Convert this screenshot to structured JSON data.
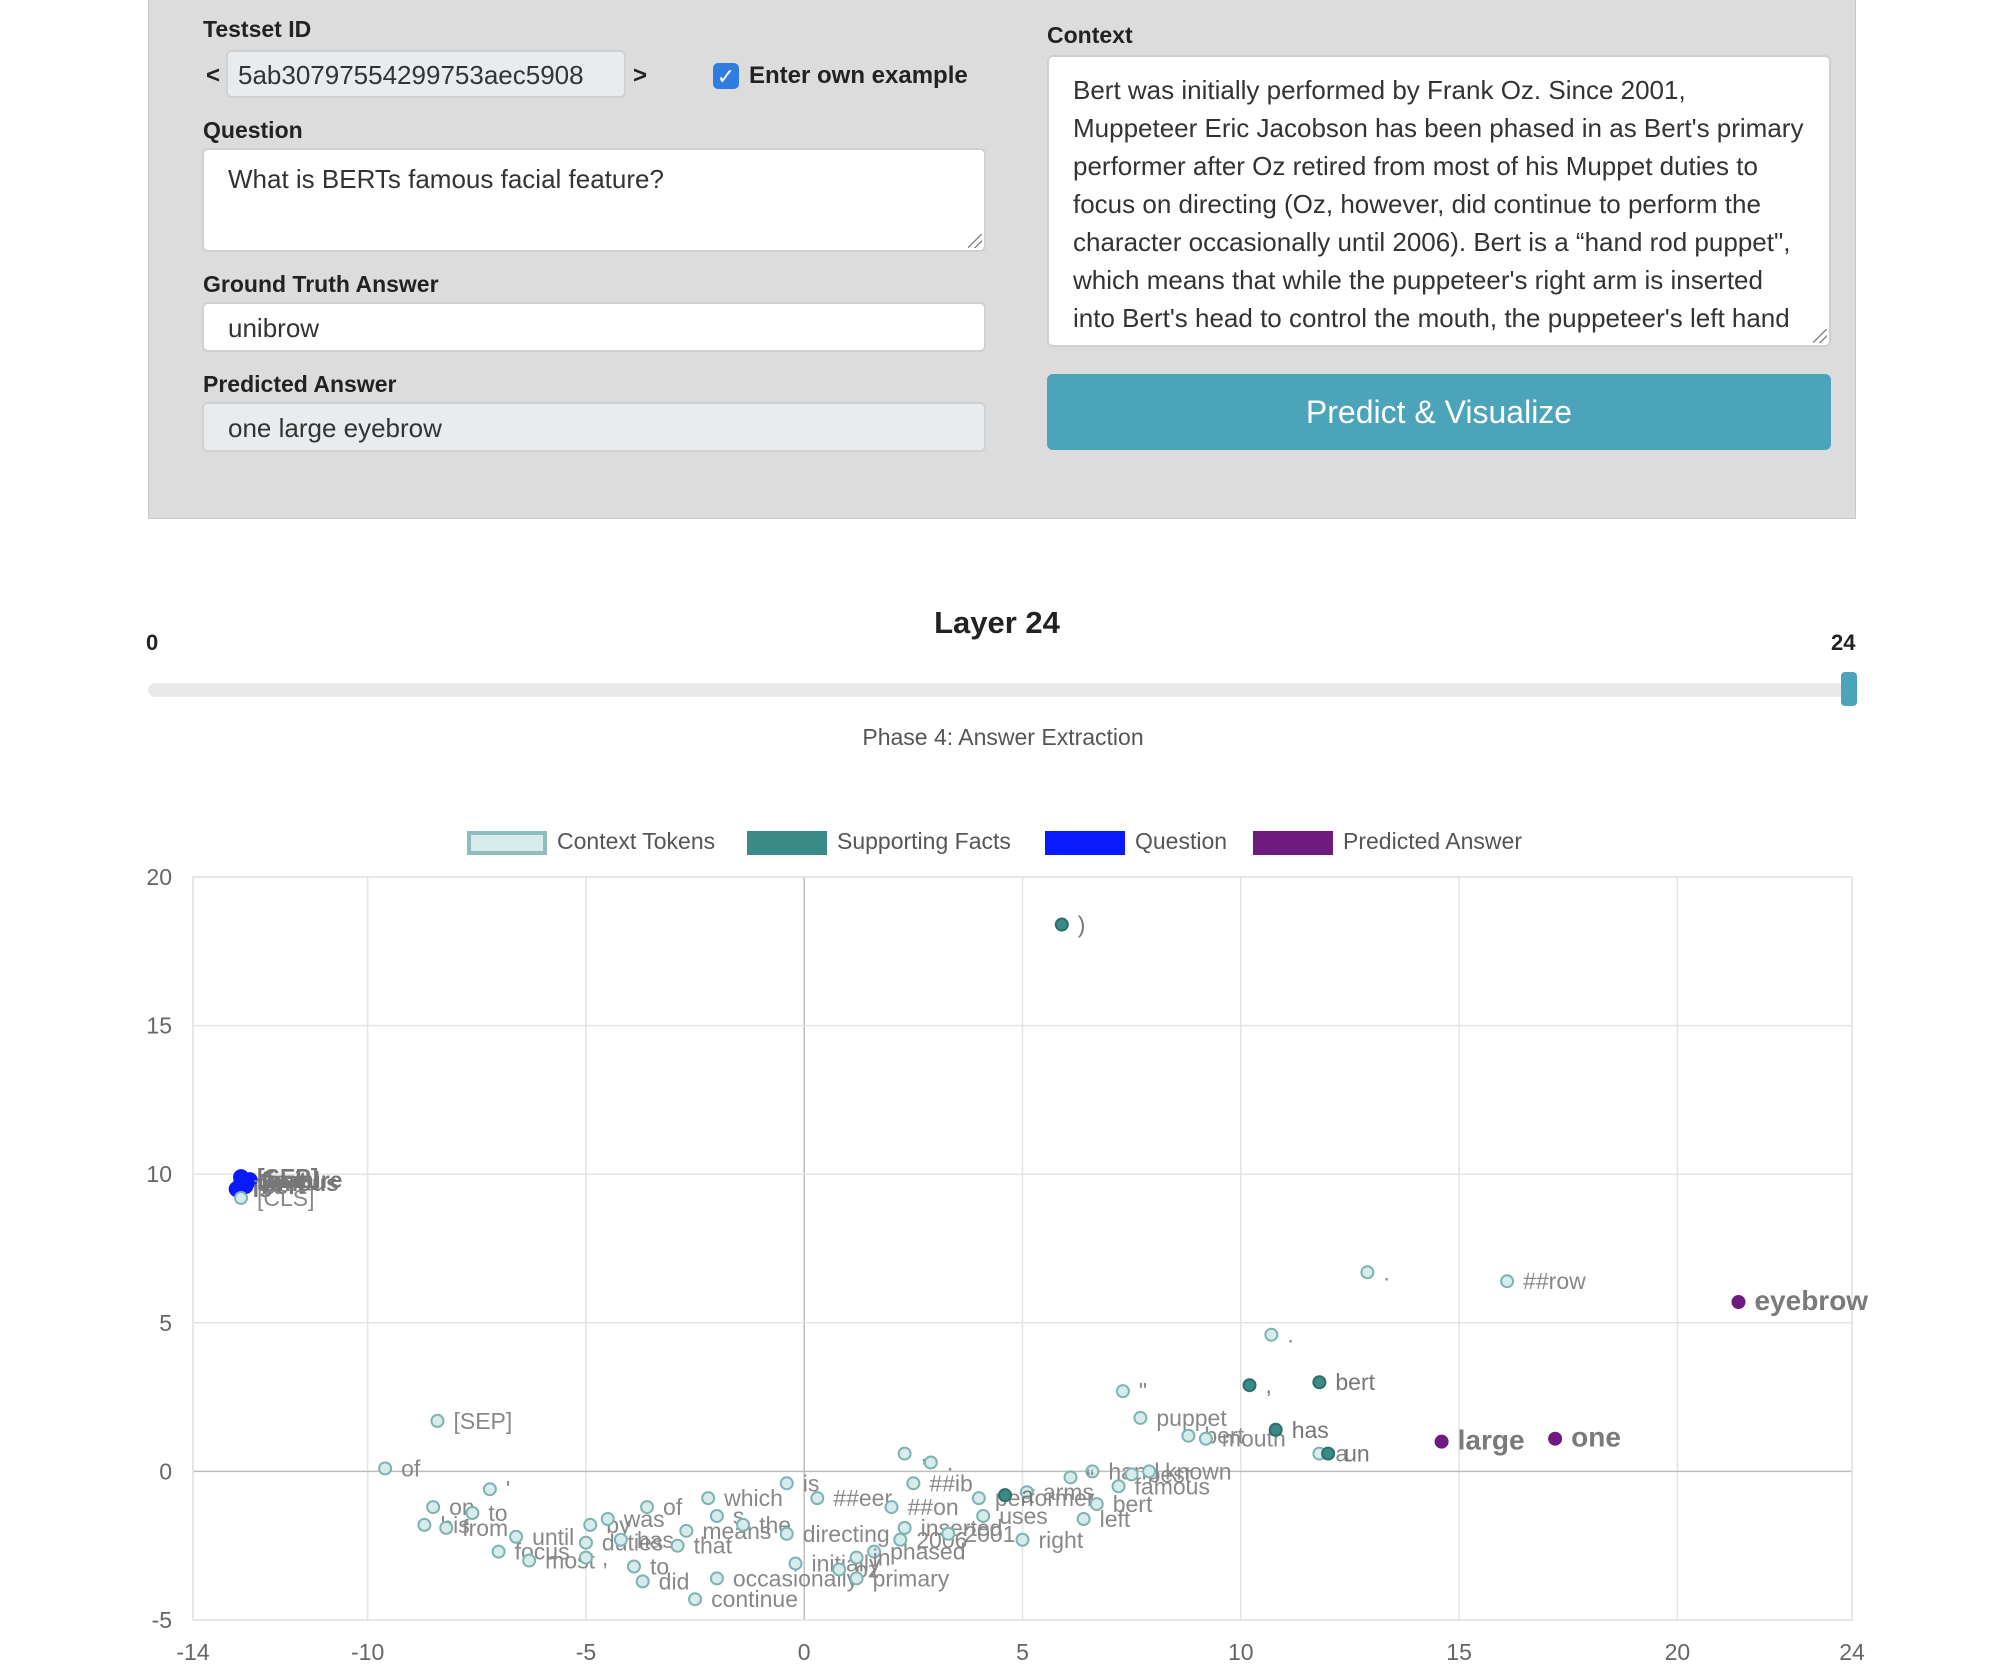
{
  "form": {
    "testset_label": "Testset ID",
    "prev": "<",
    "next": ">",
    "testset_id": "5ab30797554299753aec5908",
    "own_example_label": "Enter own example",
    "own_example_checked": true,
    "question_label": "Question",
    "question": "What is BERTs famous facial feature?",
    "ground_truth_label": "Ground Truth Answer",
    "ground_truth": "unibrow",
    "predicted_label": "Predicted Answer",
    "predicted": "one large eyebrow",
    "context_label": "Context",
    "context": "Bert was initially performed by Frank Oz. Since 2001, Muppeteer Eric Jacobson has been phased in as Bert's primary performer after Oz retired from most of his Muppet duties to focus on directing (Oz, however, did continue to perform the character occasionally until 2006). Bert is a “hand rod puppet\", which means that while the puppeteer's right arm is inserted into Bert's head to control the mouth, the puppeteer's left hand uses a rod to control the arms of the",
    "button": "Predict & Visualize"
  },
  "layer": {
    "title": "Layer 24",
    "min": "0",
    "max": "24",
    "value": 24,
    "phase": "Phase 4: Answer Extraction"
  },
  "legend": [
    {
      "label": "Context Tokens",
      "color": "#d6ecec",
      "border": "#8fbcbc"
    },
    {
      "label": "Supporting Facts",
      "color": "#3a8a87",
      "border": "#3a8a87"
    },
    {
      "label": "Question",
      "color": "#0a1aff",
      "border": "#0a1aff"
    },
    {
      "label": "Predicted Answer",
      "color": "#6e1a7e",
      "border": "#6e1a7e"
    }
  ],
  "chart_data": {
    "type": "scatter",
    "xlim": [
      -14,
      24
    ],
    "ylim": [
      -5,
      20
    ],
    "x_ticks": [
      "-14",
      "-10",
      "-5",
      "0",
      "5",
      "10",
      "15",
      "20",
      "24"
    ],
    "y_ticks": [
      "20",
      "15",
      "10",
      "5",
      "0",
      "-5"
    ],
    "points": [
      {
        "label": ")",
        "x": 5.9,
        "y": 18.4,
        "cat": "support"
      },
      {
        "label": ".",
        "x": 12.9,
        "y": 6.7,
        "cat": "context"
      },
      {
        "label": "##row",
        "x": 16.1,
        "y": 6.4,
        "cat": "context"
      },
      {
        "label": "eyebrow",
        "x": 21.4,
        "y": 5.7,
        "cat": "answer"
      },
      {
        "label": ".",
        "x": 10.7,
        "y": 4.6,
        "cat": "context"
      },
      {
        "label": "\"",
        "x": 7.3,
        "y": 2.7,
        "cat": "context"
      },
      {
        "label": ",",
        "x": 10.2,
        "y": 2.9,
        "cat": "support"
      },
      {
        "label": "bert",
        "x": 11.8,
        "y": 3.0,
        "cat": "support"
      },
      {
        "label": "puppet",
        "x": 7.7,
        "y": 1.8,
        "cat": "context"
      },
      {
        "label": "bert",
        "x": 8.8,
        "y": 1.2,
        "cat": "context"
      },
      {
        "label": "mouth",
        "x": 9.2,
        "y": 1.1,
        "cat": "context"
      },
      {
        "label": "has",
        "x": 10.8,
        "y": 1.4,
        "cat": "support"
      },
      {
        "label": "a",
        "x": 11.8,
        "y": 0.6,
        "cat": "context"
      },
      {
        "label": "un",
        "x": 12.0,
        "y": 0.6,
        "cat": "support"
      },
      {
        "label": "large",
        "x": 14.6,
        "y": 1.0,
        "cat": "answer"
      },
      {
        "label": "one",
        "x": 17.2,
        "y": 1.1,
        "cat": "answer"
      },
      {
        "label": "[SEP]",
        "x": -8.4,
        "y": 1.7,
        "cat": "context"
      },
      {
        "label": "of",
        "x": -9.6,
        "y": 0.1,
        "cat": "context"
      },
      {
        "label": "'",
        "x": -7.2,
        "y": -0.6,
        "cat": "context"
      },
      {
        "label": "on",
        "x": -8.5,
        "y": -1.2,
        "cat": "context"
      },
      {
        "label": "his",
        "x": -8.7,
        "y": -1.8,
        "cat": "context"
      },
      {
        "label": "to",
        "x": -7.6,
        "y": -1.4,
        "cat": "context"
      },
      {
        "label": "from",
        "x": -8.2,
        "y": -1.9,
        "cat": "context"
      },
      {
        "label": "focus",
        "x": -7.0,
        "y": -2.7,
        "cat": "context"
      },
      {
        "label": "until",
        "x": -6.6,
        "y": -2.2,
        "cat": "context"
      },
      {
        "label": "most",
        "x": -6.3,
        "y": -3.0,
        "cat": "context"
      },
      {
        "label": ",",
        "x": -5.0,
        "y": -2.9,
        "cat": "context"
      },
      {
        "label": "by",
        "x": -4.9,
        "y": -1.8,
        "cat": "context"
      },
      {
        "label": "duties",
        "x": -5.0,
        "y": -2.4,
        "cat": "context"
      },
      {
        "label": "was",
        "x": -4.5,
        "y": -1.6,
        "cat": "context"
      },
      {
        "label": "of",
        "x": -3.6,
        "y": -1.2,
        "cat": "context"
      },
      {
        "label": "has",
        "x": -4.2,
        "y": -2.3,
        "cat": "context"
      },
      {
        "label": "to",
        "x": -3.9,
        "y": -3.2,
        "cat": "context"
      },
      {
        "label": "did",
        "x": -3.7,
        "y": -3.7,
        "cat": "context"
      },
      {
        "label": "which",
        "x": -2.2,
        "y": -0.9,
        "cat": "context"
      },
      {
        "label": "s",
        "x": -2.0,
        "y": -1.5,
        "cat": "context"
      },
      {
        "label": "means",
        "x": -2.7,
        "y": -2.0,
        "cat": "context"
      },
      {
        "label": "that",
        "x": -2.9,
        "y": -2.5,
        "cat": "context"
      },
      {
        "label": "continue",
        "x": -2.5,
        "y": -4.3,
        "cat": "context"
      },
      {
        "label": "occasionally",
        "x": -2.0,
        "y": -3.6,
        "cat": "context"
      },
      {
        "label": "the",
        "x": -1.4,
        "y": -1.8,
        "cat": "context"
      },
      {
        "label": "is",
        "x": -0.4,
        "y": -0.4,
        "cat": "context"
      },
      {
        "label": "##eer",
        "x": 0.3,
        "y": -0.9,
        "cat": "context"
      },
      {
        "label": "directing",
        "x": -0.4,
        "y": -2.1,
        "cat": "context"
      },
      {
        "label": "initially",
        "x": -0.2,
        "y": -3.1,
        "cat": "context"
      },
      {
        "label": "oz",
        "x": 0.8,
        "y": -3.3,
        "cat": "context"
      },
      {
        "label": ",",
        "x": 2.3,
        "y": 0.6,
        "cat": "context"
      },
      {
        "label": ".",
        "x": 2.9,
        "y": 0.3,
        "cat": "context"
      },
      {
        "label": "##ib",
        "x": 2.5,
        "y": -0.4,
        "cat": "context"
      },
      {
        "label": "##on",
        "x": 2.0,
        "y": -1.2,
        "cat": "context"
      },
      {
        "label": "phased",
        "x": 1.6,
        "y": -2.7,
        "cat": "context"
      },
      {
        "label": "in",
        "x": 1.2,
        "y": -2.9,
        "cat": "context"
      },
      {
        "label": "primary",
        "x": 1.2,
        "y": -3.6,
        "cat": "context"
      },
      {
        "label": "2006",
        "x": 2.2,
        "y": -2.3,
        "cat": "context"
      },
      {
        "label": "inserted",
        "x": 2.3,
        "y": -1.9,
        "cat": "context"
      },
      {
        "label": "performer",
        "x": 4.0,
        "y": -0.9,
        "cat": "context"
      },
      {
        "label": "uses",
        "x": 4.1,
        "y": -1.5,
        "cat": "context"
      },
      {
        "label": "2001",
        "x": 3.3,
        "y": -2.1,
        "cat": "context"
      },
      {
        "label": "right",
        "x": 5.0,
        "y": -2.3,
        "cat": "context"
      },
      {
        "label": "arms",
        "x": 5.1,
        "y": -0.7,
        "cat": "context"
      },
      {
        "label": "a",
        "x": 4.6,
        "y": -0.8,
        "cat": "support"
      },
      {
        "label": "hand",
        "x": 6.6,
        "y": 0.0,
        "cat": "context"
      },
      {
        "label": "“",
        "x": 6.1,
        "y": -0.2,
        "cat": "context"
      },
      {
        "label": "best",
        "x": 7.5,
        "y": -0.1,
        "cat": "context"
      },
      {
        "label": "known",
        "x": 7.9,
        "y": 0.0,
        "cat": "context"
      },
      {
        "label": "famous",
        "x": 7.2,
        "y": -0.5,
        "cat": "context"
      },
      {
        "label": "bert",
        "x": 6.7,
        "y": -1.1,
        "cat": "context"
      },
      {
        "label": "left",
        "x": 6.4,
        "y": -1.6,
        "cat": "context"
      },
      {
        "label": "[SEP]",
        "x": -12.9,
        "y": 9.9,
        "cat": "question"
      },
      {
        "label": "facial",
        "x": -12.8,
        "y": 9.8,
        "cat": "question"
      },
      {
        "label": "feature",
        "x": -12.7,
        "y": 9.8,
        "cat": "question"
      },
      {
        "label": "famous",
        "x": -12.9,
        "y": 9.7,
        "cat": "question"
      },
      {
        "label": "bert",
        "x": -12.8,
        "y": 9.6,
        "cat": "question"
      },
      {
        "label": "is",
        "x": -13.0,
        "y": 9.5,
        "cat": "question"
      },
      {
        "label": "[CLS]",
        "x": -12.9,
        "y": 9.2,
        "cat": "context"
      }
    ]
  }
}
